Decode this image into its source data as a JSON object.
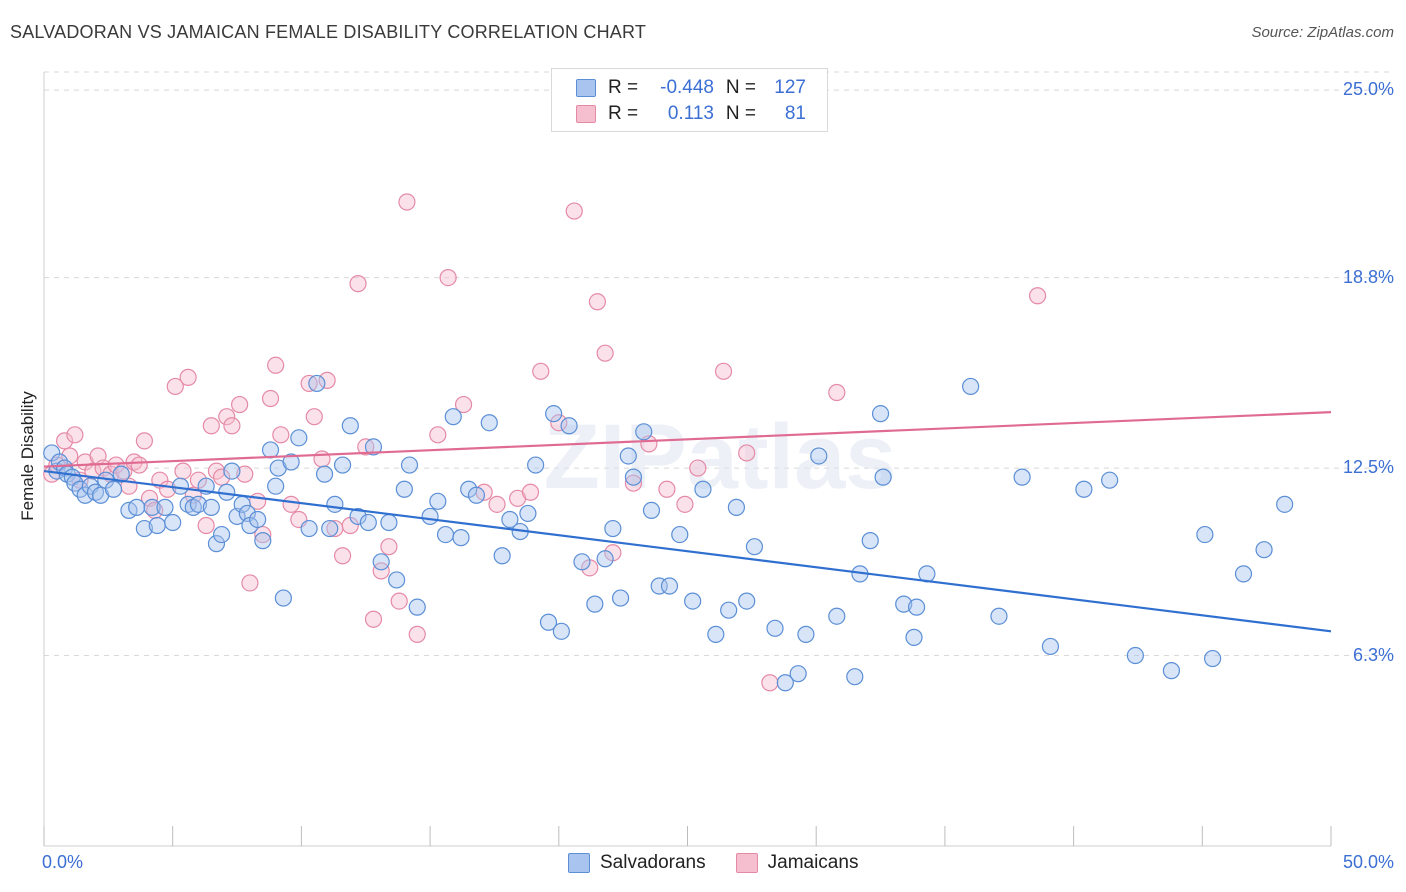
{
  "title": "SALVADORAN VS JAMAICAN FEMALE DISABILITY CORRELATION CHART",
  "source": "Source: ZipAtlas.com",
  "watermark": "ZIPatlas",
  "legend": {
    "salvadoran": {
      "r_label": "R =",
      "r_value": "-0.448",
      "n_label": "N =",
      "n_value": "127"
    },
    "jamaican": {
      "r_label": "R =",
      "r_value": "0.113",
      "n_label": "N =",
      "n_value": "81"
    }
  },
  "bottom_legend": {
    "salvadoran": "Salvadorans",
    "jamaican": "Jamaicans"
  },
  "colors": {
    "salvadoran_fill": "#a9c4ee",
    "salvadoran_stroke": "#5b8fd6",
    "salvadoran_line": "#2f6fd0",
    "jamaican_fill": "#f6bfd0",
    "jamaican_stroke": "#e58aa6",
    "jamaican_line": "#e06b92",
    "tick_text": "#3b6fd4",
    "grid": "#d8d8d8"
  },
  "chart_data": {
    "type": "scatter",
    "title": "SALVADORAN VS JAMAICAN FEMALE DISABILITY CORRELATION CHART",
    "xlabel": "",
    "ylabel": "Female Disability",
    "xlim": [
      0,
      50
    ],
    "ylim": [
      0,
      25.6
    ],
    "x_tick_labels": [
      "0.0%",
      "50.0%"
    ],
    "y_ticks": [
      6.3,
      12.5,
      18.8,
      25.0
    ],
    "y_tick_labels": [
      "6.3%",
      "12.5%",
      "18.8%",
      "25.0%"
    ],
    "grid": "horizontal dashed",
    "legend_position": "top-center",
    "series": [
      {
        "name": "Salvadorans",
        "trend": {
          "x": [
            0,
            50
          ],
          "y": [
            12.4,
            7.1
          ]
        },
        "points": [
          [
            0.3,
            13.0
          ],
          [
            0.5,
            12.4
          ],
          [
            0.6,
            12.7
          ],
          [
            0.8,
            12.5
          ],
          [
            0.9,
            12.3
          ],
          [
            1.1,
            12.2
          ],
          [
            1.2,
            12.0
          ],
          [
            1.4,
            11.8
          ],
          [
            1.6,
            11.6
          ],
          [
            1.8,
            11.9
          ],
          [
            2.0,
            11.7
          ],
          [
            2.2,
            11.6
          ],
          [
            2.4,
            12.1
          ],
          [
            2.7,
            11.8
          ],
          [
            3.0,
            12.3
          ],
          [
            3.3,
            11.1
          ],
          [
            3.6,
            11.2
          ],
          [
            3.9,
            10.5
          ],
          [
            4.2,
            11.2
          ],
          [
            4.4,
            10.6
          ],
          [
            4.7,
            11.2
          ],
          [
            5.0,
            10.7
          ],
          [
            5.3,
            11.9
          ],
          [
            5.6,
            11.3
          ],
          [
            5.8,
            11.2
          ],
          [
            6.0,
            11.3
          ],
          [
            6.3,
            11.9
          ],
          [
            6.5,
            11.2
          ],
          [
            6.7,
            10.0
          ],
          [
            6.9,
            10.3
          ],
          [
            7.1,
            11.7
          ],
          [
            7.3,
            12.4
          ],
          [
            7.5,
            10.9
          ],
          [
            7.7,
            11.3
          ],
          [
            7.9,
            11.0
          ],
          [
            8.0,
            10.6
          ],
          [
            8.3,
            10.8
          ],
          [
            8.5,
            10.1
          ],
          [
            8.8,
            13.1
          ],
          [
            9.0,
            11.9
          ],
          [
            9.1,
            12.5
          ],
          [
            9.3,
            8.2
          ],
          [
            9.6,
            12.7
          ],
          [
            9.9,
            13.5
          ],
          [
            10.3,
            10.5
          ],
          [
            10.6,
            15.3
          ],
          [
            10.9,
            12.3
          ],
          [
            11.1,
            10.5
          ],
          [
            11.3,
            11.3
          ],
          [
            11.6,
            12.6
          ],
          [
            11.9,
            13.9
          ],
          [
            12.2,
            10.9
          ],
          [
            12.6,
            10.7
          ],
          [
            12.8,
            13.2
          ],
          [
            13.1,
            9.4
          ],
          [
            13.4,
            10.7
          ],
          [
            13.7,
            8.8
          ],
          [
            14.0,
            11.8
          ],
          [
            14.2,
            12.6
          ],
          [
            14.5,
            7.9
          ],
          [
            15.0,
            10.9
          ],
          [
            15.3,
            11.4
          ],
          [
            15.6,
            10.3
          ],
          [
            15.9,
            14.2
          ],
          [
            16.2,
            10.2
          ],
          [
            16.5,
            11.8
          ],
          [
            16.8,
            11.6
          ],
          [
            17.3,
            14.0
          ],
          [
            17.8,
            9.6
          ],
          [
            18.1,
            10.8
          ],
          [
            18.5,
            10.4
          ],
          [
            18.8,
            11.0
          ],
          [
            19.1,
            12.6
          ],
          [
            19.6,
            7.4
          ],
          [
            19.8,
            14.3
          ],
          [
            20.1,
            7.1
          ],
          [
            20.4,
            13.9
          ],
          [
            20.9,
            9.4
          ],
          [
            21.4,
            8.0
          ],
          [
            21.8,
            9.5
          ],
          [
            22.1,
            10.5
          ],
          [
            22.4,
            8.2
          ],
          [
            22.7,
            12.9
          ],
          [
            22.9,
            12.2
          ],
          [
            23.3,
            13.7
          ],
          [
            23.6,
            11.1
          ],
          [
            23.9,
            8.6
          ],
          [
            24.3,
            8.6
          ],
          [
            24.7,
            10.3
          ],
          [
            25.2,
            8.1
          ],
          [
            25.6,
            11.8
          ],
          [
            26.1,
            7.0
          ],
          [
            26.6,
            7.8
          ],
          [
            26.9,
            11.2
          ],
          [
            27.3,
            8.1
          ],
          [
            27.6,
            9.9
          ],
          [
            28.4,
            7.2
          ],
          [
            28.8,
            5.4
          ],
          [
            29.3,
            5.7
          ],
          [
            29.6,
            7.0
          ],
          [
            30.1,
            12.9
          ],
          [
            30.8,
            7.6
          ],
          [
            31.5,
            5.6
          ],
          [
            31.7,
            9.0
          ],
          [
            32.1,
            10.1
          ],
          [
            32.5,
            14.3
          ],
          [
            32.6,
            12.2
          ],
          [
            33.4,
            8.0
          ],
          [
            33.8,
            6.9
          ],
          [
            33.9,
            7.9
          ],
          [
            34.3,
            9.0
          ],
          [
            36.0,
            15.2
          ],
          [
            37.1,
            7.6
          ],
          [
            38.0,
            12.2
          ],
          [
            39.1,
            6.6
          ],
          [
            40.4,
            11.8
          ],
          [
            41.4,
            12.1
          ],
          [
            42.4,
            6.3
          ],
          [
            43.8,
            5.8
          ],
          [
            45.1,
            10.3
          ],
          [
            45.4,
            6.2
          ],
          [
            46.6,
            9.0
          ],
          [
            47.4,
            9.8
          ],
          [
            48.2,
            11.3
          ]
        ]
      },
      {
        "name": "Jamaicans",
        "trend": {
          "x": [
            0,
            50
          ],
          "y": [
            12.55,
            14.35
          ]
        },
        "points": [
          [
            0.3,
            12.3
          ],
          [
            0.5,
            12.6
          ],
          [
            0.8,
            13.4
          ],
          [
            1.0,
            12.9
          ],
          [
            1.2,
            13.6
          ],
          [
            1.4,
            12.1
          ],
          [
            1.6,
            12.7
          ],
          [
            1.9,
            12.4
          ],
          [
            2.1,
            12.9
          ],
          [
            2.3,
            12.5
          ],
          [
            2.6,
            12.3
          ],
          [
            2.8,
            12.6
          ],
          [
            3.1,
            12.4
          ],
          [
            3.3,
            11.9
          ],
          [
            3.5,
            12.7
          ],
          [
            3.7,
            12.6
          ],
          [
            3.9,
            13.4
          ],
          [
            4.1,
            11.5
          ],
          [
            4.3,
            11.1
          ],
          [
            4.5,
            12.1
          ],
          [
            4.8,
            11.8
          ],
          [
            5.1,
            15.2
          ],
          [
            5.4,
            12.4
          ],
          [
            5.6,
            15.5
          ],
          [
            5.8,
            11.6
          ],
          [
            6.0,
            12.1
          ],
          [
            6.3,
            10.6
          ],
          [
            6.5,
            13.9
          ],
          [
            6.7,
            12.4
          ],
          [
            6.9,
            12.2
          ],
          [
            7.1,
            14.2
          ],
          [
            7.3,
            13.9
          ],
          [
            7.6,
            14.6
          ],
          [
            7.8,
            12.3
          ],
          [
            8.0,
            8.7
          ],
          [
            8.3,
            11.4
          ],
          [
            8.5,
            10.3
          ],
          [
            8.8,
            14.8
          ],
          [
            9.0,
            15.9
          ],
          [
            9.2,
            13.6
          ],
          [
            9.6,
            11.3
          ],
          [
            9.9,
            10.8
          ],
          [
            10.3,
            15.3
          ],
          [
            10.5,
            14.2
          ],
          [
            10.8,
            12.8
          ],
          [
            11.0,
            15.4
          ],
          [
            11.3,
            10.5
          ],
          [
            11.6,
            9.6
          ],
          [
            11.9,
            10.6
          ],
          [
            12.2,
            18.6
          ],
          [
            12.5,
            13.2
          ],
          [
            12.8,
            7.5
          ],
          [
            13.1,
            9.1
          ],
          [
            13.4,
            9.9
          ],
          [
            13.8,
            8.1
          ],
          [
            14.1,
            21.3
          ],
          [
            14.5,
            7.0
          ],
          [
            15.3,
            13.6
          ],
          [
            15.7,
            18.8
          ],
          [
            16.3,
            14.6
          ],
          [
            17.1,
            11.7
          ],
          [
            17.6,
            11.3
          ],
          [
            18.4,
            11.5
          ],
          [
            18.9,
            11.7
          ],
          [
            19.3,
            15.7
          ],
          [
            20.0,
            14.0
          ],
          [
            20.6,
            21.0
          ],
          [
            21.2,
            9.2
          ],
          [
            21.5,
            18.0
          ],
          [
            21.8,
            16.3
          ],
          [
            22.1,
            9.7
          ],
          [
            22.9,
            12.0
          ],
          [
            23.5,
            13.3
          ],
          [
            24.2,
            11.8
          ],
          [
            24.9,
            11.3
          ],
          [
            25.4,
            12.5
          ],
          [
            26.4,
            15.7
          ],
          [
            27.3,
            13.0
          ],
          [
            28.2,
            5.4
          ],
          [
            30.8,
            15.0
          ],
          [
            38.6,
            18.2
          ]
        ]
      }
    ]
  }
}
